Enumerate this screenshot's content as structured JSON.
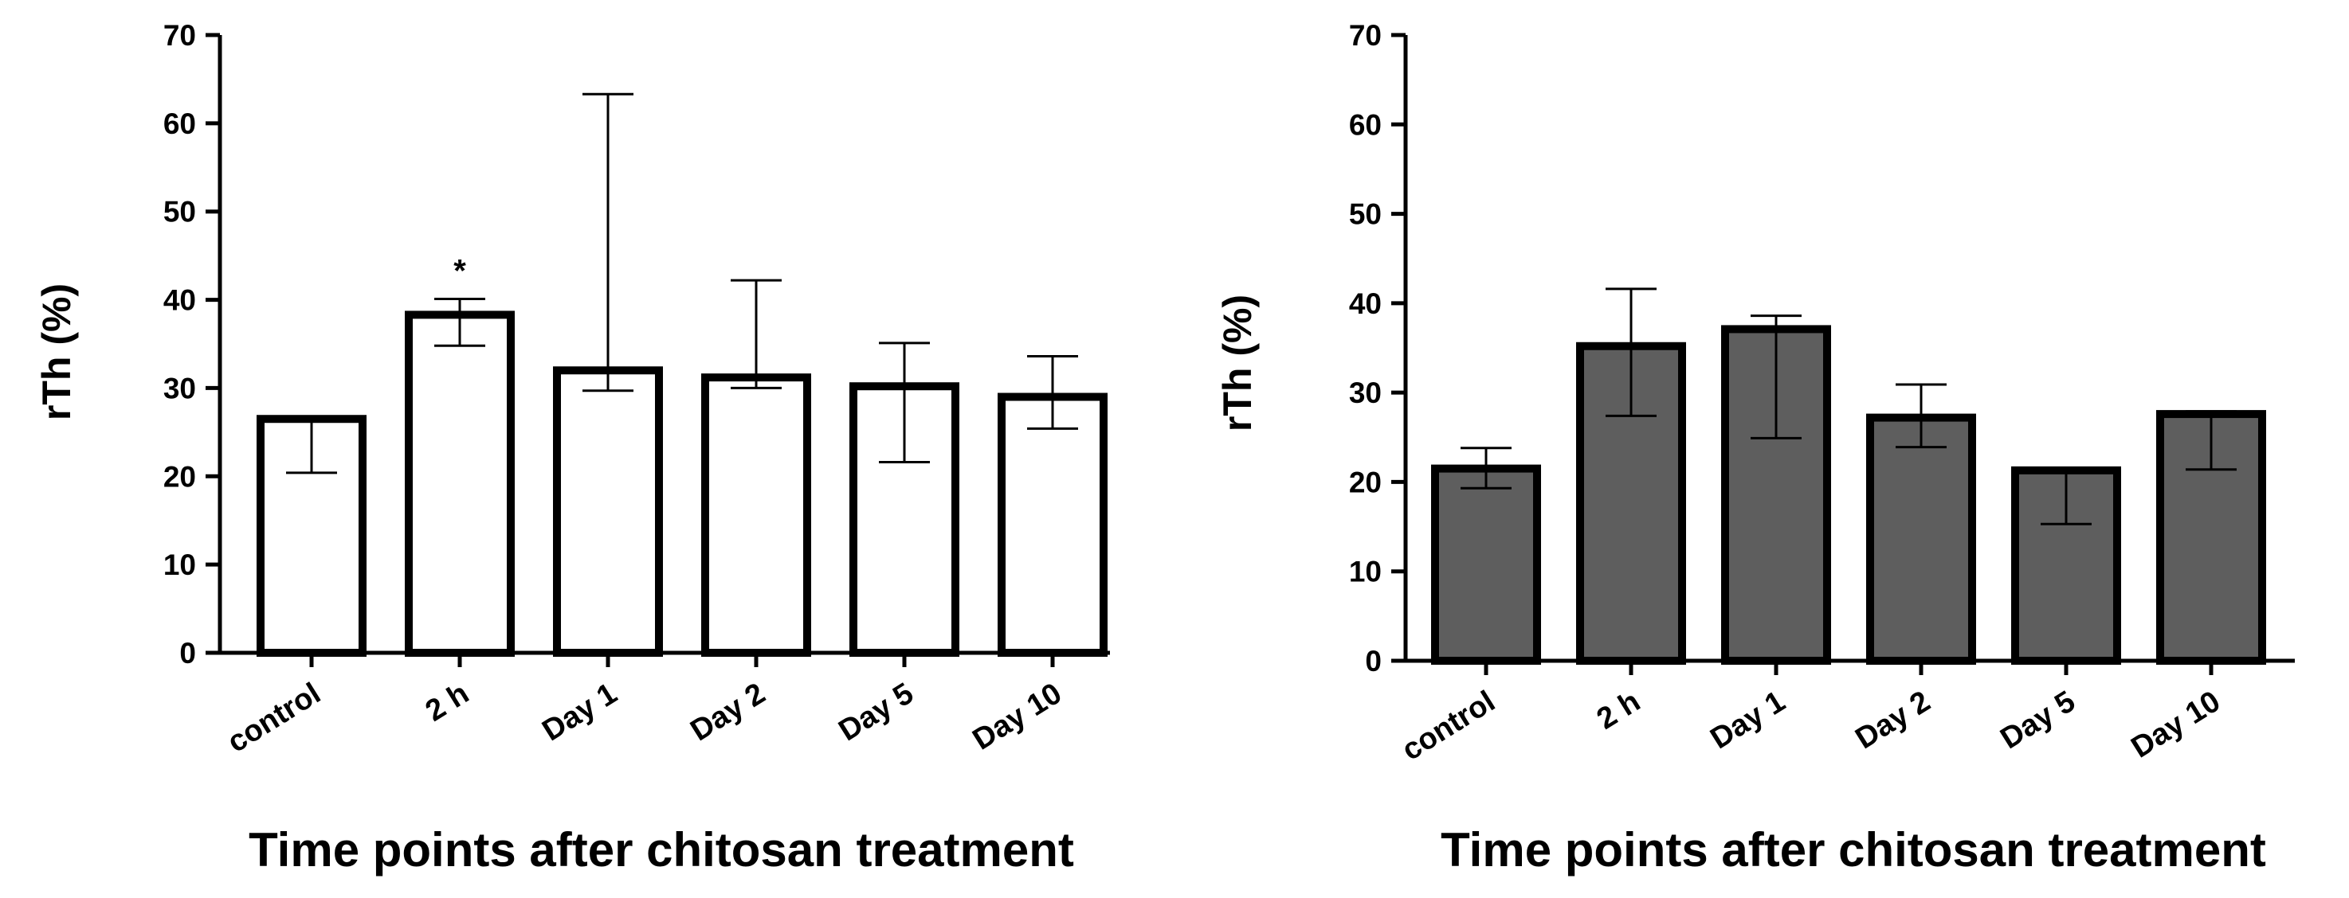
{
  "chart_data": [
    {
      "type": "bar",
      "title": "",
      "categories": [
        "control",
        "2 h",
        "Day 1",
        "Day 2",
        "Day 5",
        "Day 10"
      ],
      "values": [
        26.5,
        38.3,
        32.0,
        31.2,
        30.2,
        29.0
      ],
      "error_upper": [
        26.5,
        40.1,
        63.3,
        42.2,
        35.1,
        33.6
      ],
      "error_lower": [
        20.4,
        34.8,
        29.7,
        30.0,
        21.6,
        25.4
      ],
      "annotations": [
        "",
        "*",
        "",
        "",
        "",
        ""
      ],
      "bar_fill": "#ffffff",
      "bar_stroke": "#000000",
      "xlabel": "Time points after chitosan treatment",
      "ylabel": "rTh (%)",
      "ylim": [
        0,
        70
      ],
      "yticks": [
        "0",
        "10",
        "20",
        "30",
        "40",
        "50",
        "60",
        "70"
      ],
      "grid": false
    },
    {
      "type": "bar",
      "title": "",
      "categories": [
        "control",
        "2 h",
        "Day 1",
        "Day 2",
        "Day 5",
        "Day 10"
      ],
      "values": [
        21.5,
        35.2,
        37.1,
        27.2,
        21.3,
        27.6
      ],
      "error_upper": [
        23.8,
        41.6,
        38.6,
        30.9,
        21.6,
        27.9
      ],
      "error_lower": [
        19.3,
        27.4,
        24.9,
        23.9,
        15.3,
        21.4
      ],
      "annotations": [
        "",
        "",
        "",
        "",
        "",
        ""
      ],
      "bar_fill": "#5e5e5e",
      "bar_stroke": "#000000",
      "xlabel": "Time points after chitosan treatment",
      "ylabel": "rTh (%)",
      "ylim": [
        0,
        70
      ],
      "yticks": [
        "0",
        "10",
        "20",
        "30",
        "40",
        "50",
        "60",
        "70"
      ],
      "grid": false
    }
  ]
}
